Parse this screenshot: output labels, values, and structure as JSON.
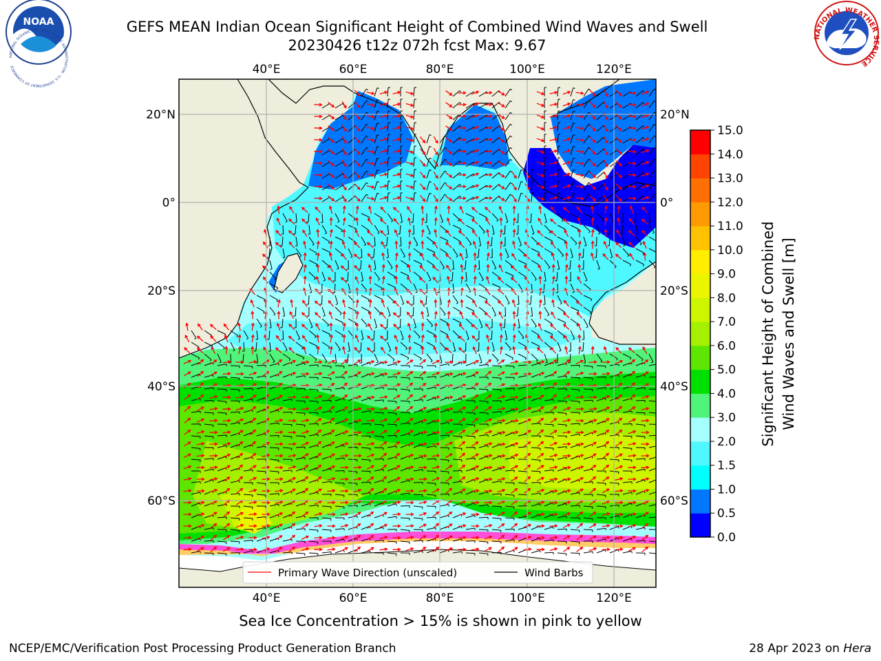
{
  "header": {
    "title_line1": "GEFS MEAN Indian Ocean Significant Height of Combined Wind Waves and Swell",
    "title_line2": "20230426 t12z 072h fcst   Max: 9.67"
  },
  "logos": {
    "noaa_text": "NOAA",
    "noaa_ring_text": "NATIONAL OCEANIC AND ATMOSPHERIC ADMINISTRATION · U.S. DEPARTMENT OF COMMERCE",
    "nws_ring_text": "NATIONAL WEATHER SERVICE"
  },
  "map": {
    "lon_labels": [
      "40°E",
      "60°E",
      "80°E",
      "100°E",
      "120°E"
    ],
    "lat_labels": [
      "20°N",
      "0°",
      "20°S",
      "40°S",
      "60°S"
    ],
    "legend": {
      "wave_direction": "Primary Wave Direction (unscaled)",
      "wind_barbs": "Wind Barbs"
    },
    "colors": {
      "wave_arrow": "#ff0000",
      "wind_barb": "#000000",
      "land": "#efeedc"
    }
  },
  "colorbar": {
    "label_line1": "Significant Height of Combined",
    "label_line2": "Wind Waves and Swell [m]",
    "ticks": [
      "0.0",
      "0.5",
      "1.0",
      "1.5",
      "2.0",
      "3.0",
      "4.0",
      "5.0",
      "6.0",
      "7.0",
      "8.0",
      "9.0",
      "10.0",
      "11.0",
      "12.0",
      "13.0",
      "14.0",
      "15.0"
    ],
    "colors": [
      "#0000ff",
      "#0077ff",
      "#00ffff",
      "#4ff7ff",
      "#a5ffff",
      "#50f47a",
      "#00e000",
      "#5ce600",
      "#a5ef00",
      "#cdf500",
      "#ebf500",
      "#ffee00",
      "#ffc200",
      "#ff9a00",
      "#ff7000",
      "#ff4400",
      "#ff0000"
    ]
  },
  "footer": {
    "sea_ice_note": "Sea Ice Concentration > 15% is shown in pink to yellow",
    "credit": "NCEP/EMC/Verification Post Processing Product Generation Branch",
    "date": "28 Apr 2023 on",
    "host": "Hera"
  }
}
